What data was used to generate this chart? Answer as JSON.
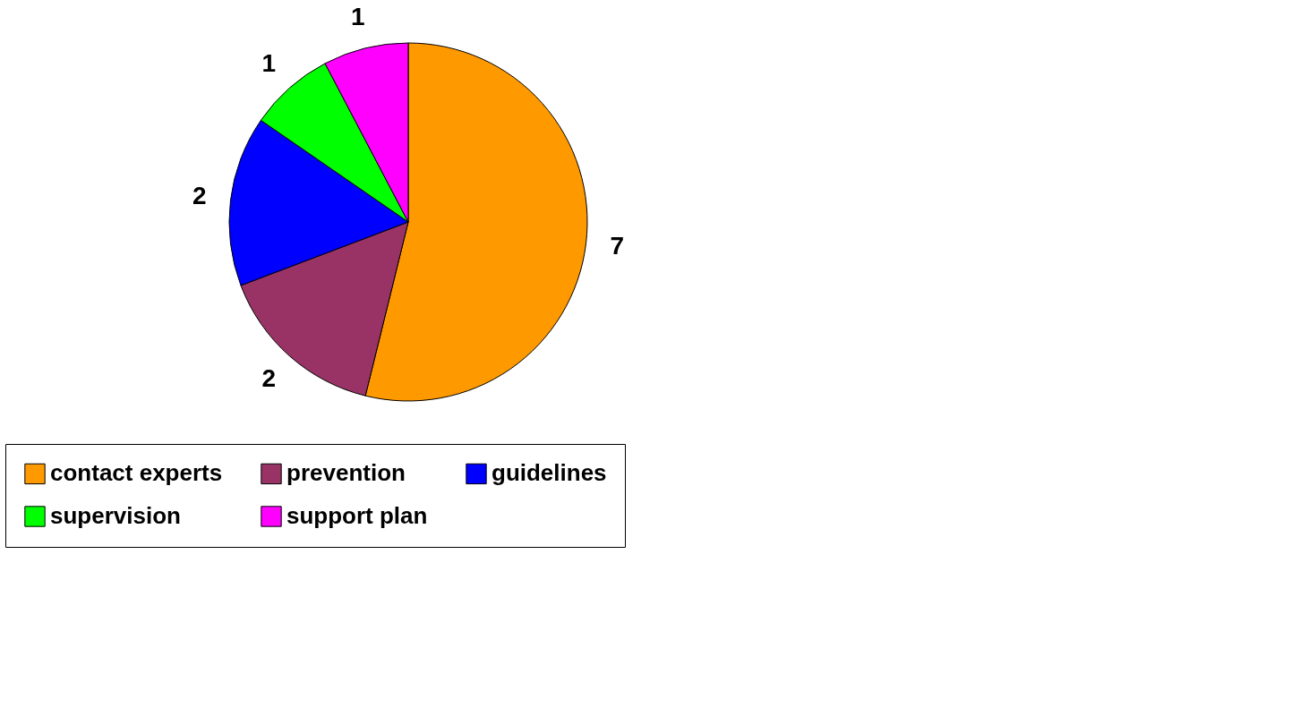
{
  "chart_data": {
    "type": "pie",
    "categories": [
      "contact experts",
      "prevention",
      "guidelines",
      "supervision",
      "support plan"
    ],
    "values": [
      7,
      2,
      2,
      1,
      1
    ],
    "colors": [
      "#ff9900",
      "#993366",
      "#0000ff",
      "#00ff00",
      "#ff00ff"
    ],
    "data_labels": true,
    "legend": "bottom"
  }
}
